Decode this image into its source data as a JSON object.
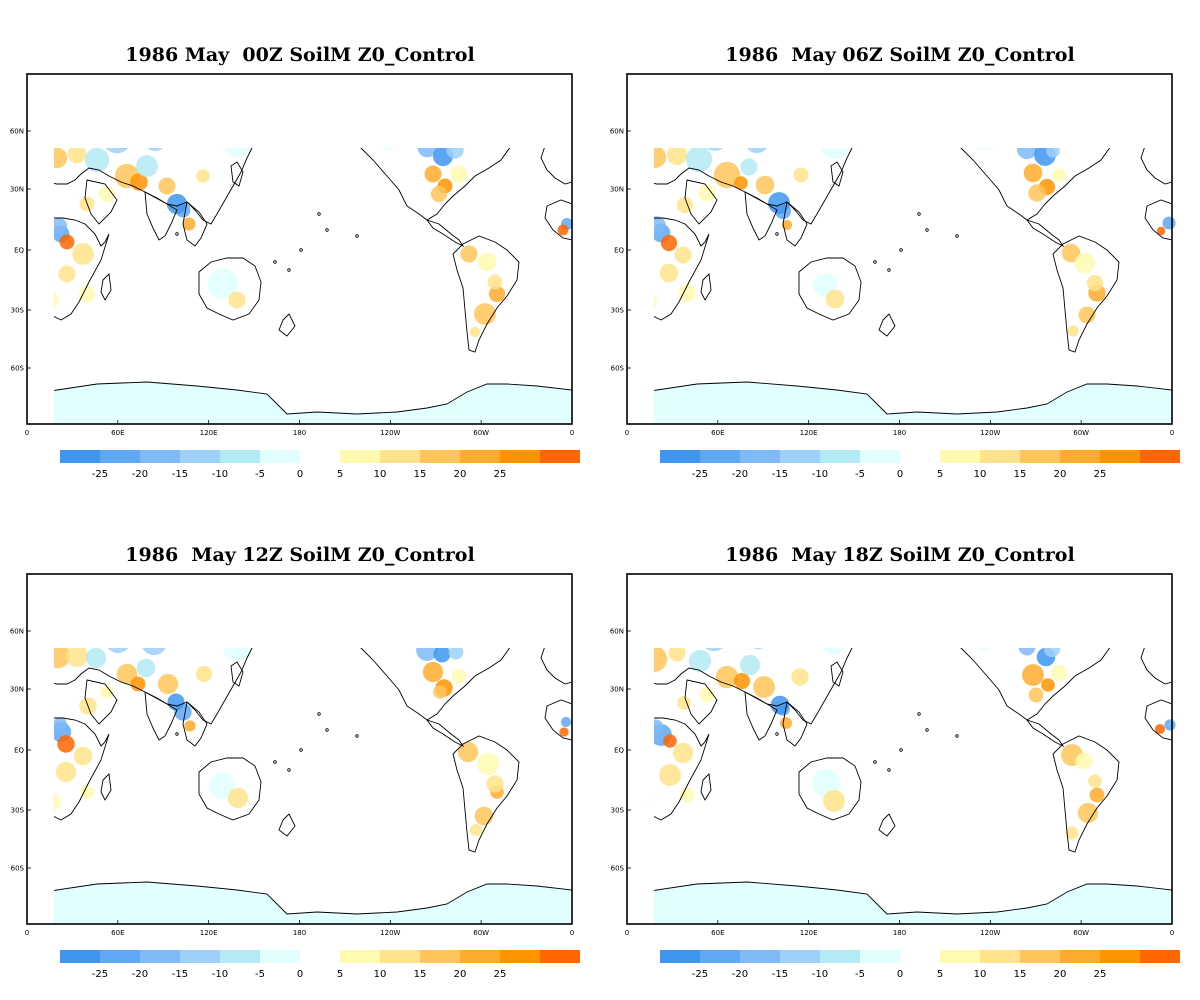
{
  "panels": [
    {
      "title": "1986 May  00Z SoilM Z0_Control"
    },
    {
      "title": "1986  May 06Z SoilM Z0_Control"
    },
    {
      "title": "1986  May 12Z SoilM Z0_Control"
    },
    {
      "title": "1986  May 18Z SoilM Z0_Control"
    }
  ],
  "lat_labels": [
    "60N",
    "30N",
    "EQ",
    "30S",
    "60S"
  ],
  "lon_labels": [
    "0",
    "60E",
    "120E",
    "180",
    "120W",
    "60W",
    "0"
  ],
  "colorbar": {
    "negative": {
      "colors": [
        "#3e96f0",
        "#5fa8f5",
        "#7fbaf7",
        "#9fd0f9",
        "#b4eaf5",
        "#e1ffff"
      ],
      "labels": [
        "-25",
        "-20",
        "-15",
        "-10",
        "-5",
        "0"
      ]
    },
    "positive": {
      "colors": [
        "#fffab0",
        "#ffe38a",
        "#ffc55a",
        "#ffab2d",
        "#ff9400",
        "#ff6600"
      ],
      "labels": [
        "5",
        "10",
        "15",
        "20",
        "25"
      ]
    }
  },
  "map_colors": {
    "ocean": "#ffffff",
    "land_base": "#ffffff",
    "ice": "#e1ffff",
    "coast": "#000000"
  }
}
